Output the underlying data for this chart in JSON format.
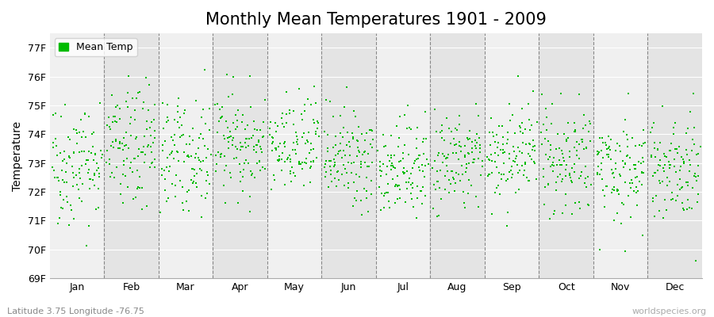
{
  "title": "Monthly Mean Temperatures 1901 - 2009",
  "ylabel": "Temperature",
  "xlabel": "",
  "dot_color": "#00bb00",
  "background_color": "#ffffff",
  "plot_bg_color_light": "#f0f0f0",
  "plot_bg_color_dark": "#e4e4e4",
  "legend_label": "Mean Temp",
  "ylim": [
    69.0,
    77.5
  ],
  "yticks": [
    69,
    70,
    71,
    72,
    73,
    74,
    75,
    76,
    77
  ],
  "ytick_labels": [
    "69F",
    "70F",
    "71F",
    "72F",
    "73F",
    "74F",
    "75F",
    "76F",
    "77F"
  ],
  "months": [
    "Jan",
    "Feb",
    "Mar",
    "Apr",
    "May",
    "Jun",
    "Jul",
    "Aug",
    "Sep",
    "Oct",
    "Nov",
    "Dec"
  ],
  "n_years": 109,
  "seed": 42,
  "monthly_means": [
    73.0,
    73.5,
    73.3,
    73.7,
    73.5,
    73.1,
    72.8,
    73.1,
    73.3,
    73.1,
    72.8,
    72.9
  ],
  "monthly_stds": [
    1.1,
    1.05,
    0.95,
    0.9,
    0.85,
    0.85,
    0.85,
    0.85,
    0.85,
    0.85,
    0.95,
    0.95
  ],
  "footer_left": "Latitude 3.75 Longitude -76.75",
  "footer_right": "worldspecies.org",
  "title_fontsize": 15,
  "axis_label_fontsize": 10,
  "tick_fontsize": 9,
  "footer_fontsize": 8,
  "dot_size": 3,
  "dot_alpha": 1.0,
  "marker": "s"
}
